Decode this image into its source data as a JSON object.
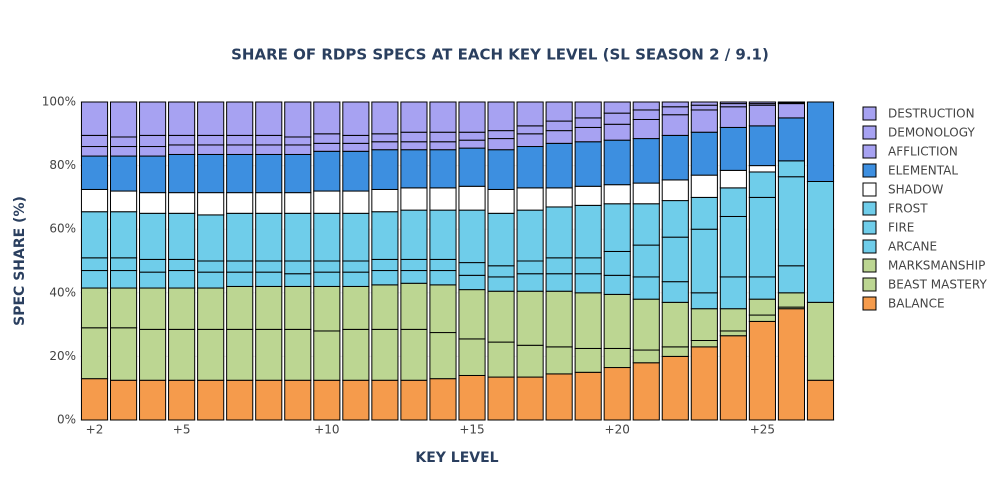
{
  "chart_data": {
    "type": "stacked_bar",
    "title": "SHARE OF RDPS SPECS AT EACH KEY LEVEL (SL SEASON 2 / 9.1)",
    "xlabel": "KEY LEVEL",
    "ylabel": "SPEC SHARE (%)",
    "x": [
      2,
      3,
      4,
      5,
      6,
      7,
      8,
      9,
      10,
      11,
      12,
      13,
      14,
      15,
      16,
      17,
      18,
      19,
      20,
      21,
      22,
      23,
      24,
      25,
      26,
      27
    ],
    "xlim": [
      1.5,
      27.5
    ],
    "xticks": [
      {
        "value": 2,
        "label": "+2"
      },
      {
        "value": 5,
        "label": "+5"
      },
      {
        "value": 10,
        "label": "+10"
      },
      {
        "value": 15,
        "label": "+15"
      },
      {
        "value": 20,
        "label": "+20"
      },
      {
        "value": 25,
        "label": "+25"
      }
    ],
    "ylim": [
      0,
      100
    ],
    "yticks": [
      {
        "value": 0,
        "label": "0%"
      },
      {
        "value": 20,
        "label": "20%"
      },
      {
        "value": 40,
        "label": "40%"
      },
      {
        "value": 60,
        "label": "60%"
      },
      {
        "value": 80,
        "label": "80%"
      },
      {
        "value": 100,
        "label": "100%"
      }
    ],
    "grid": true,
    "legend": "right",
    "series": [
      {
        "name": "BALANCE",
        "color": "#f59b4c",
        "values": [
          13,
          12.5,
          12.5,
          12.5,
          12.5,
          12.5,
          12.5,
          12.5,
          12.5,
          12.5,
          12.5,
          12.5,
          13,
          14,
          13.5,
          13.5,
          14.5,
          15,
          16.5,
          18,
          20,
          23,
          26.5,
          31,
          35,
          12.5
        ]
      },
      {
        "name": "BEAST MASTERY",
        "color": "#bcd692",
        "values": [
          16,
          16.5,
          16,
          16,
          16,
          16,
          16,
          16,
          15.5,
          16,
          16,
          16,
          14.5,
          11.5,
          11,
          10,
          8.5,
          7.5,
          6,
          4,
          3,
          2,
          1.5,
          2,
          0.5,
          0
        ]
      },
      {
        "name": "MARKSMANSHIP",
        "color": "#bcd692",
        "values": [
          12.5,
          12.5,
          13,
          13,
          13,
          13.5,
          13.5,
          13.5,
          14,
          13.5,
          14,
          14.5,
          15,
          15.5,
          16,
          17,
          17.5,
          17.5,
          17,
          16,
          14,
          10,
          7,
          5,
          4.5,
          24.5
        ]
      },
      {
        "name": "ARCANE",
        "color": "#6fcdea",
        "values": [
          5.5,
          5.5,
          5,
          5.5,
          5,
          4.5,
          4.5,
          4,
          4.5,
          4.5,
          4.5,
          4,
          4.5,
          4.5,
          4.5,
          5.5,
          5.5,
          6,
          6,
          7,
          6.5,
          5,
          10,
          7,
          8.5,
          0
        ]
      },
      {
        "name": "FIRE",
        "color": "#6fcdea",
        "values": [
          4,
          4,
          4,
          3.5,
          3.5,
          3.5,
          3.5,
          4,
          3.5,
          3.5,
          3.5,
          3.5,
          3.5,
          4,
          3.5,
          4,
          5,
          5,
          7.5,
          10,
          14,
          20,
          19,
          25,
          28,
          38
        ]
      },
      {
        "name": "FROST",
        "color": "#6fcdea",
        "values": [
          14.5,
          14.5,
          14.5,
          14.5,
          14.5,
          15,
          15,
          15,
          15,
          15,
          15,
          15.5,
          15.5,
          16.5,
          16.5,
          16,
          16,
          16.5,
          15,
          13,
          11.5,
          10,
          9,
          8,
          5,
          0
        ]
      },
      {
        "name": "SHADOW",
        "color": "#ffffff",
        "values": [
          7,
          6.5,
          6.5,
          6.5,
          7,
          6.5,
          6.5,
          6.5,
          7,
          7,
          7,
          7,
          7,
          7.5,
          7.5,
          7,
          6,
          6,
          6,
          6.5,
          6.5,
          7,
          5.5,
          2,
          0,
          0
        ]
      },
      {
        "name": "ELEMENTAL",
        "color": "#3d8fe0",
        "values": [
          10.5,
          11,
          11.5,
          12,
          12,
          12,
          12,
          12,
          12.5,
          12.5,
          12.5,
          12,
          12,
          12,
          12.5,
          13,
          14,
          14,
          14,
          14,
          14,
          13.5,
          13.5,
          12.5,
          13.5,
          25
        ]
      },
      {
        "name": "AFFLICTION",
        "color": "#a7a2f2",
        "values": [
          3,
          3,
          3,
          3,
          3,
          3,
          3,
          3,
          2.5,
          2.5,
          2.5,
          2.5,
          2.5,
          2.5,
          3.5,
          4,
          4,
          4.5,
          5,
          6,
          6.5,
          7,
          6.5,
          6.5,
          4.5,
          0
        ]
      },
      {
        "name": "DEMONOLOGY",
        "color": "#a7a2f2",
        "values": [
          3.5,
          3,
          3.5,
          3,
          3,
          3,
          3,
          2.5,
          3,
          2.5,
          2.5,
          3,
          3,
          2.5,
          2.5,
          2.5,
          3,
          3,
          3.5,
          3,
          2.5,
          1.5,
          1,
          0.5,
          0.2,
          0
        ]
      },
      {
        "name": "DESTRUCTION",
        "color": "#a7a2f2",
        "values": [
          10.5,
          11,
          10.5,
          10.5,
          10.5,
          10.5,
          10.5,
          11,
          10,
          10.5,
          10,
          9.5,
          9.5,
          9.5,
          9,
          7.5,
          6,
          5,
          3.5,
          2.5,
          1.5,
          1,
          0.5,
          0.5,
          0.3,
          0
        ]
      }
    ]
  }
}
